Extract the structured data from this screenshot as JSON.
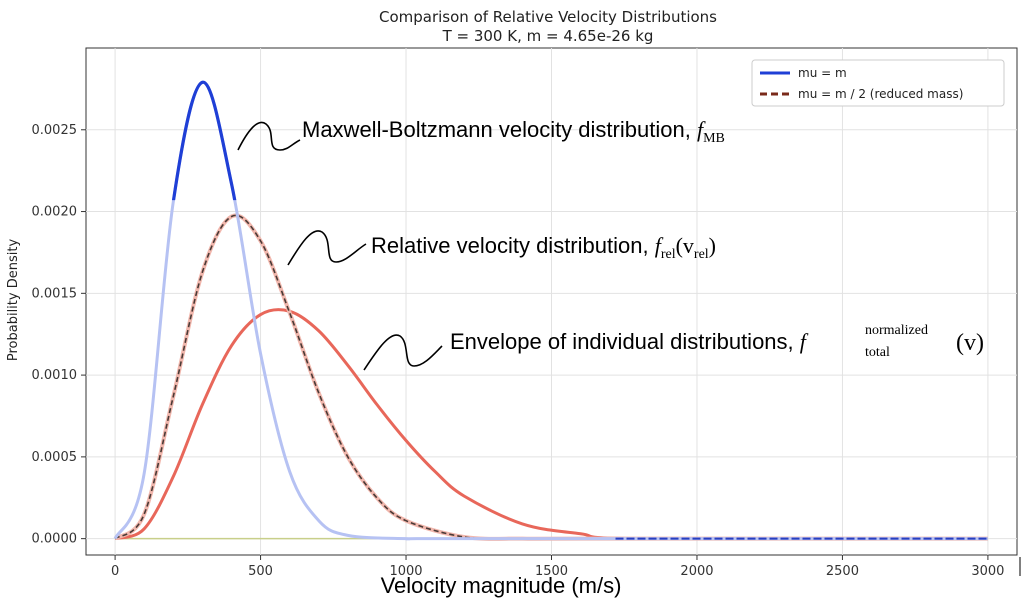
{
  "chart_data": {
    "type": "line",
    "title": "Comparison of Relative Velocity Distributions",
    "subtitle": "T = 300 K, m = 4.65e-26 kg",
    "xlabel": "Velocity magnitude (m/s)",
    "ylabel": "Probability Density",
    "xlim": [
      -100,
      3100
    ],
    "ylim": [
      -0.0001,
      0.003
    ],
    "xticks": [
      0,
      500,
      1000,
      1500,
      2000,
      2500,
      3000
    ],
    "xtick_labels": [
      "0",
      "500",
      "1000",
      "1500",
      "2000",
      "2500",
      "3000"
    ],
    "yticks": [
      0.0,
      0.0005,
      0.001,
      0.0015,
      0.002,
      0.0025
    ],
    "ytick_labels": [
      "0.0000",
      "0.0005",
      "0.0010",
      "0.0015",
      "0.0020",
      "0.0025"
    ],
    "grid": true,
    "legend_position": "top-right",
    "series": [
      {
        "name": "mu = m",
        "color": "#1f3fd6",
        "style": "solid",
        "x": [
          0,
          100,
          200,
          300,
          400,
          500,
          600,
          700,
          800,
          1000,
          1200,
          3000
        ],
        "y": [
          0,
          0.0004,
          0.00206,
          0.00279,
          0.00217,
          0.00113,
          0.00041,
          0.00011,
          2e-05,
          0.0,
          0.0,
          0.0
        ]
      },
      {
        "name": "mu = m / 2 (reduced mass)",
        "color": "#7a2a1a",
        "style": "dashed",
        "x": [
          0,
          100,
          200,
          300,
          400,
          500,
          600,
          700,
          800,
          900,
          1000,
          1200,
          1400,
          1600,
          3000
        ],
        "y": [
          0,
          0.00015,
          0.00087,
          0.00163,
          0.00197,
          0.00182,
          0.00138,
          0.00089,
          0.0005,
          0.00025,
          0.00011,
          1e-05,
          0.0,
          0.0,
          0.0
        ]
      },
      {
        "color": "#e8675a",
        "style": "solid",
        "x": [
          0,
          100,
          200,
          300,
          400,
          500,
          600,
          700,
          800,
          900,
          1000,
          1100,
          1200,
          1400,
          1600,
          1800,
          3000
        ],
        "y": [
          0,
          6e-05,
          0.00038,
          0.00082,
          0.00118,
          0.00137,
          0.00139,
          0.00127,
          0.00106,
          0.00082,
          0.0006,
          0.00041,
          0.00026,
          9e-05,
          3e-05,
          0.0,
          0.0
        ]
      }
    ],
    "annotations": [
      {
        "text": "Maxwell-Boltzmann velocity distribution, ",
        "math_base": "f",
        "math_sub": "MB",
        "math_sup": "",
        "math_tail": ""
      },
      {
        "text": "Relative velocity distribution, ",
        "math_base": "f",
        "math_sub": "rel",
        "math_sup": "",
        "math_tail": "(v",
        "math_tail_sub": "rel",
        "math_tail_end": ")"
      },
      {
        "text": "Envelope of individual distributions, ",
        "math_base": "f",
        "math_sub": "total",
        "math_sup": "normalized",
        "math_tail": "(v)"
      }
    ]
  }
}
